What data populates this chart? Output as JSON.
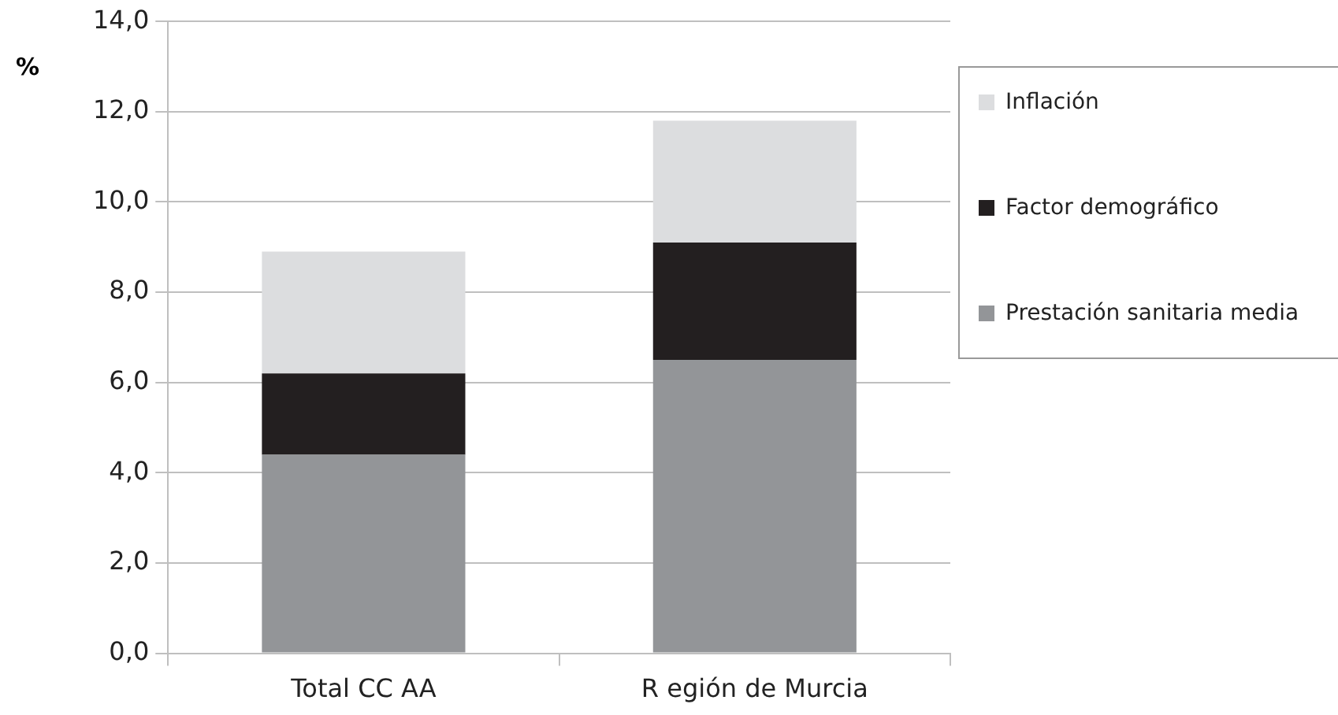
{
  "chart_data": {
    "type": "bar",
    "stacked": true,
    "ylabel": "%",
    "categories": [
      "Total CC AA",
      "R egión de Murcia"
    ],
    "series": [
      {
        "name": "Prestación sanitaria media",
        "color": "#939598",
        "values": [
          4.4,
          6.5
        ]
      },
      {
        "name": "Factor demográfico",
        "color": "#231f20",
        "values": [
          1.8,
          2.6
        ]
      },
      {
        "name": "Inflación",
        "color": "#dcdddf",
        "values": [
          2.7,
          2.7
        ]
      }
    ],
    "ylim": [
      0,
      14
    ],
    "yticks": [
      {
        "value": 0,
        "label": "0,0"
      },
      {
        "value": 2,
        "label": "2,0"
      },
      {
        "value": 4,
        "label": "4,0"
      },
      {
        "value": 6,
        "label": "6,0"
      },
      {
        "value": 8,
        "label": "8,0"
      },
      {
        "value": 10,
        "label": "10,0"
      },
      {
        "value": 12,
        "label": "12,0"
      },
      {
        "value": 14,
        "label": "14,0"
      }
    ],
    "grid": "y",
    "legend": "right"
  }
}
